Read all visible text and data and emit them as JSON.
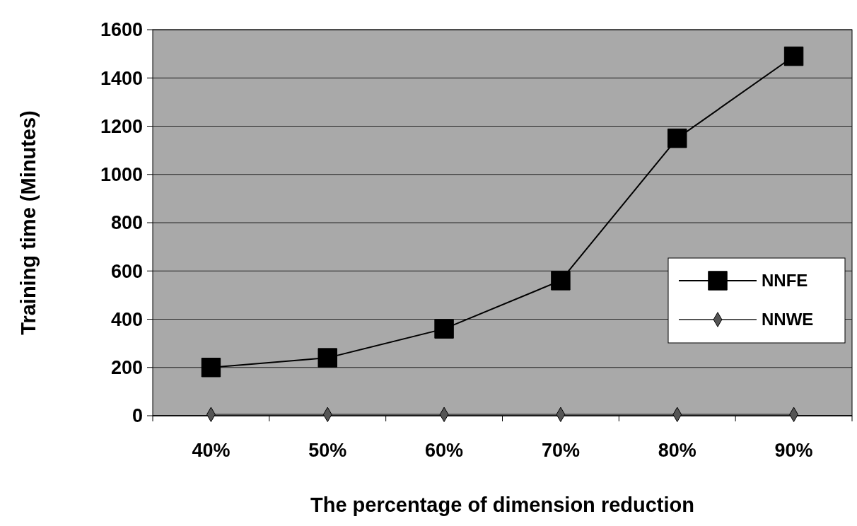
{
  "chart_data": {
    "type": "line",
    "xlabel": "The percentage of dimension reduction",
    "ylabel": "Training time (Minutes)",
    "categories": [
      "40%",
      "50%",
      "60%",
      "70%",
      "80%",
      "90%"
    ],
    "series": [
      {
        "name": "NNFE",
        "color": "#000000",
        "marker": "square",
        "values": [
          200,
          240,
          360,
          560,
          1150,
          1490
        ]
      },
      {
        "name": "NNWE",
        "color": "#555555",
        "marker": "diamond",
        "values": [
          5,
          5,
          5,
          5,
          5,
          5
        ]
      }
    ],
    "ylim": [
      0,
      1600
    ],
    "yticks": [
      0,
      200,
      400,
      600,
      800,
      1000,
      1200,
      1400,
      1600
    ],
    "grid": "y",
    "legend": "right"
  }
}
